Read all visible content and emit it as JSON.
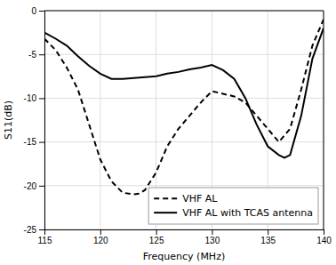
{
  "chart_data": {
    "type": "line",
    "xlabel": "Frequency (MHz)",
    "ylabel": "S11(dB)",
    "xlim": [
      115,
      140
    ],
    "ylim": [
      -25,
      0
    ],
    "xticks": [
      115,
      120,
      125,
      130,
      135,
      140
    ],
    "yticks": [
      0,
      -5,
      -10,
      -15,
      -20,
      -25
    ],
    "grid": true,
    "legend": "lower right",
    "series": [
      {
        "name": "VHF AL",
        "color": "#000000",
        "line_style": "dashed",
        "x": [
          115,
          116,
          117,
          118,
          119,
          120,
          121,
          122,
          123,
          123.5,
          124,
          125,
          126,
          127,
          128,
          129,
          130,
          131,
          132,
          133,
          134,
          135,
          136,
          137,
          138,
          139,
          140
        ],
        "values": [
          -3.2,
          -4.5,
          -6.5,
          -9.0,
          -13.0,
          -17.0,
          -19.5,
          -20.8,
          -21.0,
          -20.9,
          -20.5,
          -18.5,
          -15.5,
          -13.5,
          -12.0,
          -10.5,
          -9.2,
          -9.5,
          -9.8,
          -10.5,
          -12.0,
          -13.5,
          -15.0,
          -13.5,
          -9.0,
          -4.0,
          -1.0
        ]
      },
      {
        "name": "VHF AL with TCAS antenna",
        "color": "#000000",
        "line_style": "solid",
        "x": [
          115,
          116,
          117,
          118,
          119,
          120,
          121,
          122,
          123,
          124,
          125,
          126,
          127,
          128,
          129,
          130,
          131,
          132,
          133,
          134,
          135,
          136,
          136.5,
          137,
          138,
          139,
          140
        ],
        "values": [
          -2.5,
          -3.2,
          -4.0,
          -5.2,
          -6.3,
          -7.2,
          -7.8,
          -7.8,
          -7.7,
          -7.6,
          -7.5,
          -7.2,
          -7.0,
          -6.7,
          -6.5,
          -6.2,
          -6.8,
          -7.8,
          -10.0,
          -13.0,
          -15.5,
          -16.5,
          -16.8,
          -16.5,
          -12.0,
          -5.5,
          -2.0
        ]
      }
    ]
  }
}
